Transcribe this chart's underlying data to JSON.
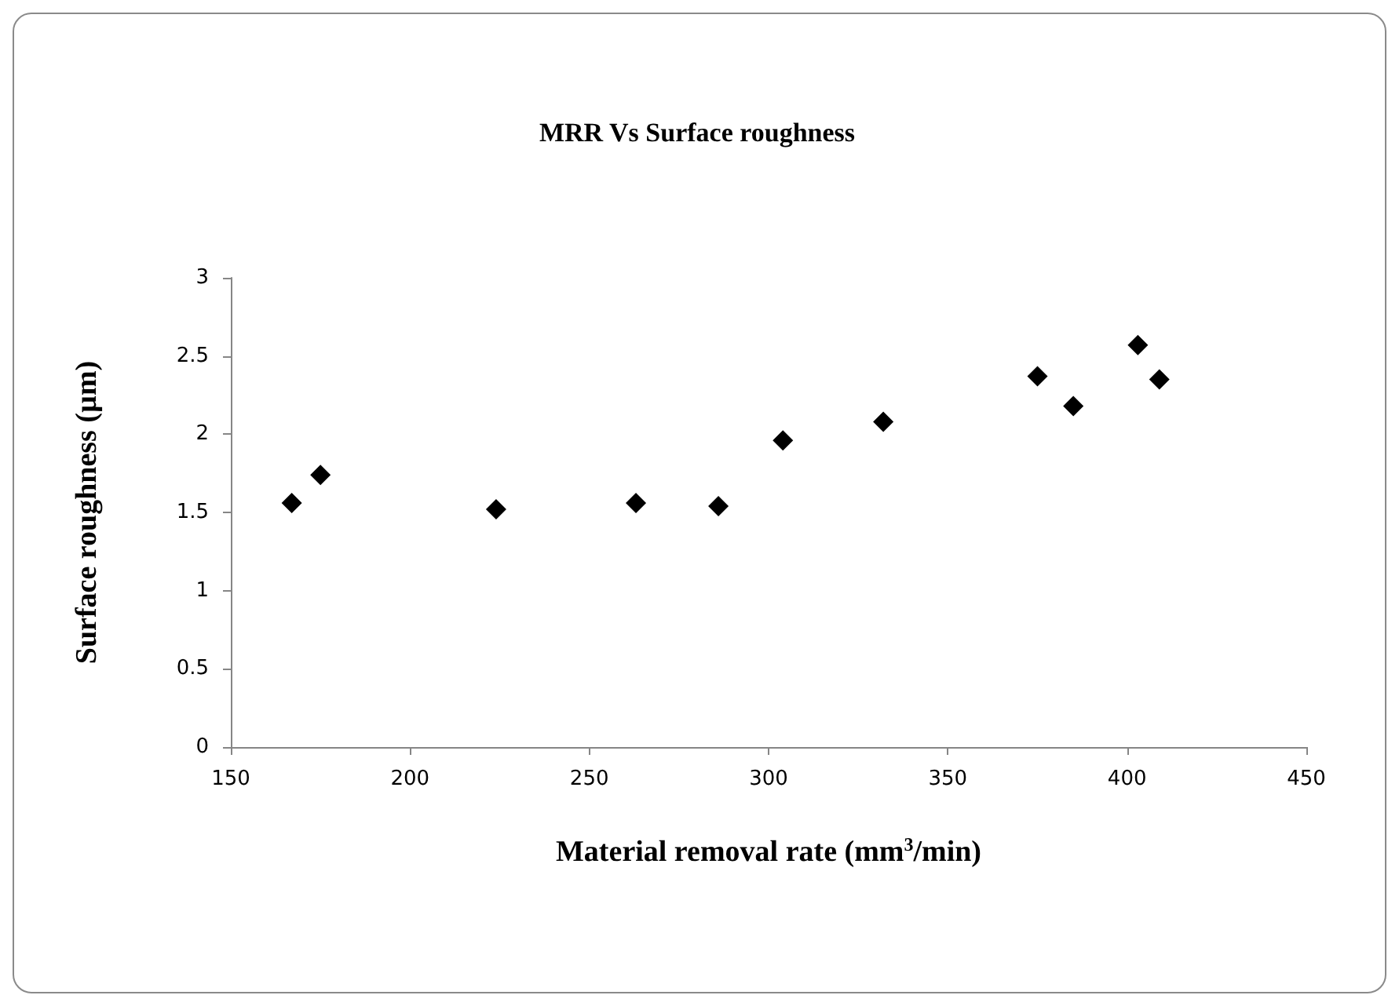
{
  "chart_data": {
    "type": "scatter",
    "title": "MRR Vs Surface roughness",
    "xlabel": "Material removal rate (mm$^{3}$/min)",
    "ylabel": "Surface roughness (µm)",
    "x": [
      167,
      175,
      224,
      263,
      286,
      304,
      332,
      375,
      385,
      403,
      409
    ],
    "values": [
      1.56,
      1.74,
      1.52,
      1.56,
      1.54,
      1.96,
      2.08,
      2.37,
      2.18,
      2.57,
      2.35
    ],
    "color": "#000000",
    "marker": "diamond",
    "grid": false,
    "xlim": [
      150,
      450
    ],
    "xticks": [
      150,
      200,
      250,
      300,
      350,
      400,
      450
    ],
    "ylim": [
      0,
      3
    ],
    "yticks": [
      0,
      0.5,
      1,
      1.5,
      2,
      2.5,
      3
    ]
  }
}
